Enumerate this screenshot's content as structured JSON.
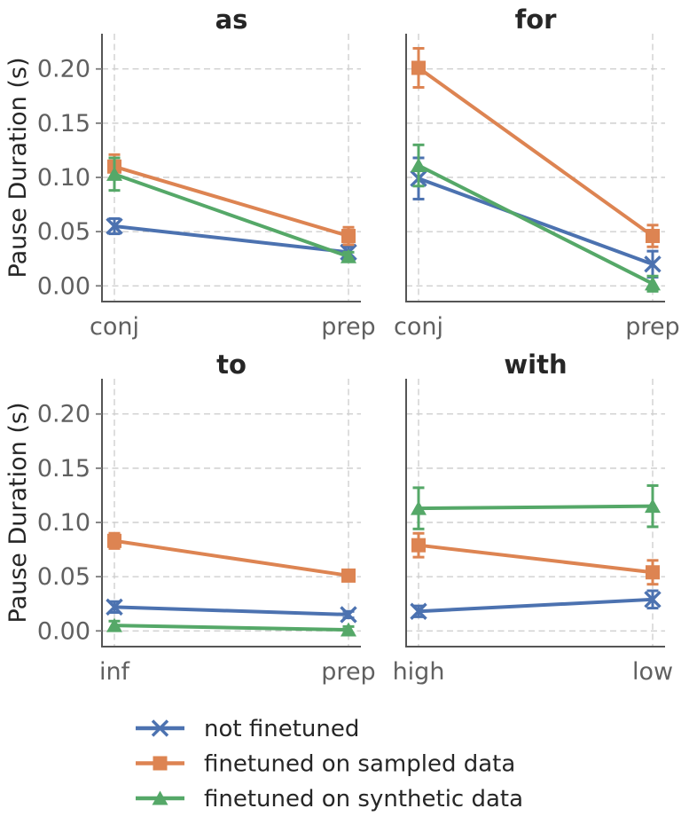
{
  "figure": {
    "ylabel": "Pause Duration (s)",
    "ytick_labels": [
      "0.00",
      "0.05",
      "0.10",
      "0.15",
      "0.20"
    ],
    "ytick_values": [
      0,
      0.05,
      0.1,
      0.15,
      0.2
    ],
    "ylim": [
      -0.0145,
      0.2325
    ],
    "background": "#ffffff",
    "grid": "dashed"
  },
  "chart_data": [
    {
      "type": "line",
      "title": "as",
      "categories": [
        "conj",
        "prep"
      ],
      "xlabel": "",
      "ylabel": "Pause Duration (s)",
      "ylim": [
        -0.0145,
        0.2325
      ],
      "series": [
        {
          "name": "not finetuned",
          "color": "#4C72B0",
          "marker": "x",
          "values": [
            0.055,
            0.031
          ],
          "errors": [
            0.007,
            0.005
          ]
        },
        {
          "name": "finetuned on sampled data",
          "color": "#DD8452",
          "marker": "square",
          "values": [
            0.11,
            0.046
          ],
          "errors": [
            0.011,
            0.008
          ]
        },
        {
          "name": "finetuned on synthetic data",
          "color": "#55A868",
          "marker": "triangle-up",
          "values": [
            0.103,
            0.027
          ],
          "errors": [
            0.015,
            0.004
          ]
        }
      ]
    },
    {
      "type": "line",
      "title": "for",
      "categories": [
        "conj",
        "prep"
      ],
      "xlabel": "",
      "ylabel": "Pause Duration (s)",
      "ylim": [
        -0.0145,
        0.2325
      ],
      "series": [
        {
          "name": "not finetuned",
          "color": "#4C72B0",
          "marker": "x",
          "values": [
            0.099,
            0.02
          ],
          "errors": [
            0.019,
            0.012
          ]
        },
        {
          "name": "finetuned on sampled data",
          "color": "#DD8452",
          "marker": "square",
          "values": [
            0.201,
            0.046
          ],
          "errors": [
            0.018,
            0.01
          ]
        },
        {
          "name": "finetuned on synthetic data",
          "color": "#55A868",
          "marker": "triangle-up",
          "values": [
            0.111,
            0.002
          ],
          "errors": [
            0.019,
            0.007
          ]
        }
      ]
    },
    {
      "type": "line",
      "title": "to",
      "categories": [
        "inf",
        "prep"
      ],
      "xlabel": "",
      "ylabel": "Pause Duration (s)",
      "ylim": [
        -0.0145,
        0.2325
      ],
      "series": [
        {
          "name": "not finetuned",
          "color": "#4C72B0",
          "marker": "x",
          "values": [
            0.022,
            0.015
          ],
          "errors": [
            0.005,
            0.003
          ]
        },
        {
          "name": "finetuned on sampled data",
          "color": "#DD8452",
          "marker": "square",
          "values": [
            0.083,
            0.051
          ],
          "errors": [
            0.007,
            0.005
          ]
        },
        {
          "name": "finetuned on synthetic data",
          "color": "#55A868",
          "marker": "triangle-up",
          "values": [
            0.005,
            0.001
          ],
          "errors": [
            0.004,
            0.003
          ]
        }
      ]
    },
    {
      "type": "line",
      "title": "with",
      "categories": [
        "high",
        "low"
      ],
      "xlabel": "",
      "ylabel": "Pause Duration (s)",
      "ylim": [
        -0.0145,
        0.2325
      ],
      "series": [
        {
          "name": "not finetuned",
          "color": "#4C72B0",
          "marker": "x",
          "values": [
            0.018,
            0.029
          ],
          "errors": [
            0.005,
            0.008
          ]
        },
        {
          "name": "finetuned on sampled data",
          "color": "#DD8452",
          "marker": "square",
          "values": [
            0.079,
            0.054
          ],
          "errors": [
            0.011,
            0.011
          ]
        },
        {
          "name": "finetuned on synthetic data",
          "color": "#55A868",
          "marker": "triangle-up",
          "values": [
            0.113,
            0.115
          ],
          "errors": [
            0.019,
            0.019
          ]
        }
      ]
    }
  ],
  "legend": {
    "position": "bottom-left",
    "items": [
      {
        "label": "not finetuned",
        "color": "#4C72B0",
        "marker": "x"
      },
      {
        "label": "finetuned on sampled data",
        "color": "#DD8452",
        "marker": "square"
      },
      {
        "label": "finetuned on synthetic data",
        "color": "#55A868",
        "marker": "triangle-up"
      }
    ]
  },
  "style": {
    "blue": "#4C72B0",
    "orange": "#DD8452",
    "green": "#55A868",
    "grid_color": "#cfcfcf",
    "spine_color": "#555555",
    "tick_label_color": "#606060",
    "text_color": "#262626"
  }
}
